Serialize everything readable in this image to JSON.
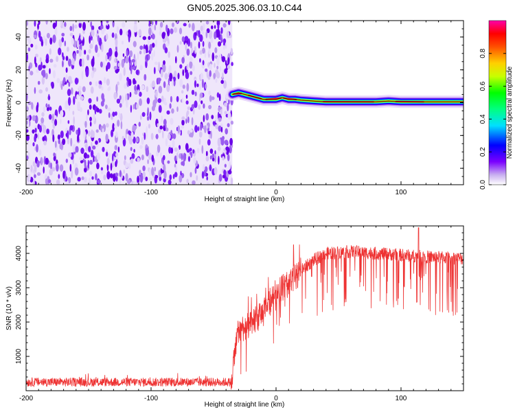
{
  "title": "GN05.2025.306.03.10.C44",
  "chart_data": [
    {
      "type": "heatmap",
      "name": "spectrogram",
      "xlabel": "Height of straight line (km)",
      "ylabel": "Frequency (Hz)",
      "xlim": [
        -200,
        150
      ],
      "ylim": [
        -50,
        50
      ],
      "xticks": [
        -200,
        -100,
        0,
        100
      ],
      "yticks": [
        -40,
        -20,
        0,
        20,
        40
      ],
      "noise_region_x": [
        -200,
        -35
      ],
      "signal_track": [
        {
          "x": -35,
          "y": 5
        },
        {
          "x": -30,
          "y": 6
        },
        {
          "x": -25,
          "y": 5
        },
        {
          "x": -20,
          "y": 4
        },
        {
          "x": -15,
          "y": 3
        },
        {
          "x": -10,
          "y": 2
        },
        {
          "x": -5,
          "y": 2
        },
        {
          "x": 0,
          "y": 2
        },
        {
          "x": 5,
          "y": 3
        },
        {
          "x": 10,
          "y": 2
        },
        {
          "x": 15,
          "y": 2
        },
        {
          "x": 20,
          "y": 1.5
        },
        {
          "x": 30,
          "y": 1
        },
        {
          "x": 40,
          "y": 0.5
        },
        {
          "x": 60,
          "y": 0.5
        },
        {
          "x": 80,
          "y": 0.5
        },
        {
          "x": 90,
          "y": 1
        },
        {
          "x": 100,
          "y": 0.5
        },
        {
          "x": 120,
          "y": 0.5
        },
        {
          "x": 150,
          "y": 0.5
        }
      ],
      "colorbar": {
        "label": "Normalized spectral amplitude",
        "range": [
          0,
          1
        ],
        "ticks": [
          "0.0",
          "0.2",
          "0.4",
          "0.6",
          "0.8"
        ]
      }
    },
    {
      "type": "line",
      "name": "snr",
      "xlabel": "Height of straight line (km)",
      "ylabel": "SNR (10 * v/v)",
      "xlim": [
        -200,
        150
      ],
      "ylim": [
        0,
        4800
      ],
      "xticks": [
        -200,
        -100,
        0,
        100
      ],
      "yticks": [
        1000,
        2000,
        3000,
        4000
      ],
      "color": "#ee3333",
      "envelope": [
        {
          "x": -200,
          "y": 250
        },
        {
          "x": -36,
          "y": 250
        },
        {
          "x": -30,
          "y": 1800
        },
        {
          "x": -20,
          "y": 1900
        },
        {
          "x": -10,
          "y": 2300
        },
        {
          "x": 0,
          "y": 2900
        },
        {
          "x": 10,
          "y": 3100
        },
        {
          "x": 20,
          "y": 3500
        },
        {
          "x": 30,
          "y": 3800
        },
        {
          "x": 40,
          "y": 4000
        },
        {
          "x": 60,
          "y": 4050
        },
        {
          "x": 80,
          "y": 4000
        },
        {
          "x": 100,
          "y": 3950
        },
        {
          "x": 120,
          "y": 3900
        },
        {
          "x": 150,
          "y": 3850
        }
      ]
    }
  ]
}
